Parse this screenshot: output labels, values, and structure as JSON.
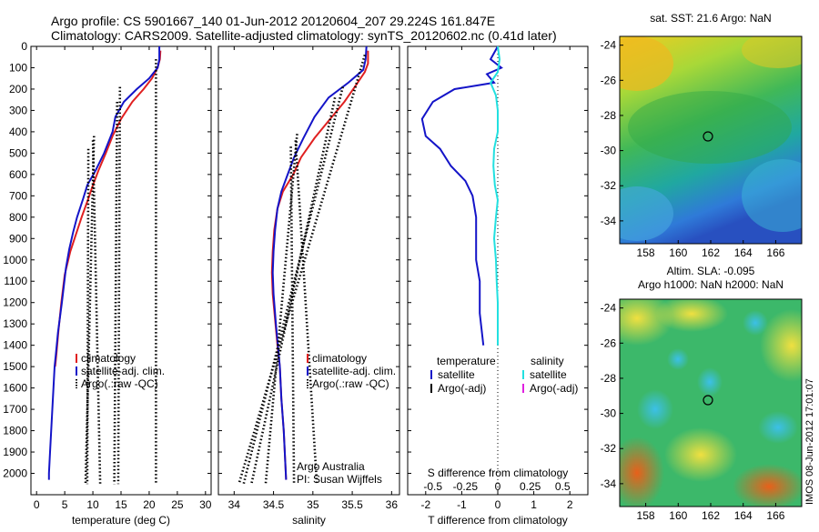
{
  "header": {
    "line1": "Argo profile: CS 5901667_140 01-Jun-2012 20120604_207 29.224S 161.847E",
    "line2": "Climatology: CARS2009. Satellite-adjusted climatology: synTS_20120602.nc (0.41d later)"
  },
  "side_label": "IMOS 08-Jun-2012 17:01:07",
  "colors": {
    "climatology": "#e02020",
    "satellite": "#1414c8",
    "argo": "#000000",
    "sal_sat": "#22e0e0",
    "sal_argo": "#e020e0"
  },
  "chart_data": [
    {
      "id": "temp",
      "type": "line",
      "xlabel": "temperature (deg C)",
      "xlim": [
        -1,
        31
      ],
      "xticks": [
        0,
        5,
        10,
        15,
        20,
        25,
        30
      ],
      "ylim": [
        2100,
        0
      ],
      "yticks": [
        0,
        100,
        200,
        300,
        400,
        500,
        600,
        700,
        800,
        900,
        1000,
        1100,
        1200,
        1300,
        1400,
        1500,
        1600,
        1700,
        1800,
        1900,
        2000
      ],
      "legend": [
        "climatology",
        "satellite-adj. clim.",
        "Argo(.:raw -QC)"
      ],
      "series": [
        {
          "name": "climatology",
          "color_key": "climatology",
          "points": [
            [
              22.0,
              20
            ],
            [
              21.9,
              60
            ],
            [
              21.5,
              100
            ],
            [
              20.5,
              150
            ],
            [
              19.0,
              200
            ],
            [
              17.0,
              260
            ],
            [
              15.0,
              340
            ],
            [
              13.5,
              420
            ],
            [
              12.3,
              500
            ],
            [
              11.0,
              580
            ],
            [
              10.0,
              650
            ],
            [
              9.1,
              720
            ],
            [
              8.0,
              800
            ],
            [
              7.0,
              880
            ],
            [
              6.0,
              960
            ],
            [
              5.0,
              1070
            ],
            [
              4.4,
              1200
            ],
            [
              3.9,
              1330
            ],
            [
              3.5,
              1450
            ],
            [
              3.3,
              1500
            ]
          ]
        },
        {
          "name": "satellite-adj. clim.",
          "color_key": "satellite",
          "points": [
            [
              21.8,
              0
            ],
            [
              21.8,
              60
            ],
            [
              21.5,
              100
            ],
            [
              20.0,
              150
            ],
            [
              17.8,
              200
            ],
            [
              15.5,
              260
            ],
            [
              14.0,
              330
            ],
            [
              13.5,
              400
            ],
            [
              12.0,
              500
            ],
            [
              10.5,
              580
            ],
            [
              9.0,
              650
            ],
            [
              8.2,
              720
            ],
            [
              7.2,
              800
            ],
            [
              6.5,
              870
            ],
            [
              5.8,
              950
            ],
            [
              5.2,
              1040
            ],
            [
              4.5,
              1200
            ],
            [
              3.8,
              1340
            ],
            [
              3.4,
              1450
            ],
            [
              3.2,
              1500
            ],
            [
              2.8,
              1700
            ],
            [
              2.4,
              1900
            ],
            [
              2.2,
              2000
            ],
            [
              2.2,
              2030
            ]
          ]
        },
        {
          "name": "Argo raw",
          "color_key": "argo",
          "dotted": true,
          "points": [
            [
              21.2,
              60
            ],
            [
              21.2,
              2050
            ]
          ]
        },
        {
          "name": "Argo raw",
          "color_key": "argo",
          "dotted": true,
          "points": [
            [
              14.8,
              190
            ],
            [
              14.5,
              2050
            ]
          ]
        },
        {
          "name": "Argo raw",
          "color_key": "argo",
          "dotted": true,
          "points": [
            [
              14.3,
              260
            ],
            [
              13.8,
              2050
            ]
          ]
        },
        {
          "name": "Argo raw",
          "color_key": "argo",
          "dotted": true,
          "points": [
            [
              10.2,
              420
            ],
            [
              8.7,
              2050
            ]
          ]
        },
        {
          "name": "Argo raw",
          "color_key": "argo",
          "dotted": true,
          "points": [
            [
              10.0,
              440
            ],
            [
              11.3,
              2050
            ]
          ]
        },
        {
          "name": "Argo raw",
          "color_key": "argo",
          "dotted": true,
          "points": [
            [
              9.2,
              480
            ],
            [
              9.0,
              2050
            ]
          ]
        }
      ]
    },
    {
      "id": "sal",
      "type": "line",
      "xlabel": "salinity",
      "xlim": [
        33.8,
        36.1
      ],
      "xticks": [
        34,
        34.5,
        35,
        35.5,
        36
      ],
      "xticklabels": [
        "34",
        "34.5",
        "35",
        "35.5",
        "36"
      ],
      "ylim": [
        2100,
        0
      ],
      "legend": [
        "climatology",
        "satellite-adj. clim.",
        "Argo(.:raw -QC)"
      ],
      "annotation": [
        "Argo Australia",
        "PI: Susan Wijffels"
      ],
      "series": [
        {
          "name": "climatology",
          "color_key": "climatology",
          "points": [
            [
              35.7,
              20
            ],
            [
              35.7,
              80
            ],
            [
              35.66,
              120
            ],
            [
              35.55,
              180
            ],
            [
              35.4,
              260
            ],
            [
              35.22,
              340
            ],
            [
              35.02,
              430
            ],
            [
              34.85,
              520
            ],
            [
              34.75,
              600
            ],
            [
              34.62,
              680
            ],
            [
              34.55,
              760
            ],
            [
              34.51,
              860
            ],
            [
              34.49,
              960
            ],
            [
              34.48,
              1060
            ],
            [
              34.49,
              1160
            ],
            [
              34.52,
              1280
            ],
            [
              34.55,
              1400
            ],
            [
              34.58,
              1500
            ],
            [
              34.6,
              1650
            ],
            [
              34.63,
              1800
            ],
            [
              34.65,
              1950
            ],
            [
              34.66,
              2030
            ]
          ]
        },
        {
          "name": "satellite-adj. clim.",
          "color_key": "satellite",
          "points": [
            [
              35.68,
              0
            ],
            [
              35.67,
              60
            ],
            [
              35.64,
              110
            ],
            [
              35.45,
              170
            ],
            [
              35.2,
              240
            ],
            [
              35.02,
              330
            ],
            [
              34.88,
              430
            ],
            [
              34.76,
              520
            ],
            [
              34.68,
              600
            ],
            [
              34.6,
              680
            ],
            [
              34.55,
              760
            ],
            [
              34.52,
              860
            ],
            [
              34.5,
              960
            ],
            [
              34.49,
              1060
            ],
            [
              34.5,
              1160
            ],
            [
              34.53,
              1300
            ],
            [
              34.56,
              1420
            ],
            [
              34.58,
              1500
            ],
            [
              34.6,
              1650
            ],
            [
              34.63,
              1800
            ],
            [
              34.65,
              1950
            ],
            [
              34.66,
              2030
            ]
          ]
        },
        {
          "name": "Argo raw",
          "color_key": "argo",
          "dotted": true,
          "points": [
            [
              35.66,
              40
            ],
            [
              34.06,
              2050
            ]
          ]
        },
        {
          "name": "Argo raw",
          "color_key": "argo",
          "dotted": true,
          "points": [
            [
              35.38,
              190
            ],
            [
              34.12,
              2050
            ]
          ]
        },
        {
          "name": "Argo raw",
          "color_key": "argo",
          "dotted": true,
          "points": [
            [
              35.28,
              240
            ],
            [
              34.22,
              2050
            ]
          ]
        },
        {
          "name": "Argo raw",
          "color_key": "argo",
          "dotted": true,
          "points": [
            [
              34.8,
              410
            ],
            [
              34.4,
              2050
            ]
          ]
        },
        {
          "name": "Argo raw",
          "color_key": "argo",
          "dotted": true,
          "points": [
            [
              34.78,
              440
            ],
            [
              35.05,
              2050
            ]
          ]
        },
        {
          "name": "Argo raw",
          "color_key": "argo",
          "dotted": true,
          "points": [
            [
              34.72,
              470
            ],
            [
              34.76,
              2050
            ]
          ]
        }
      ]
    },
    {
      "id": "diff",
      "type": "line",
      "xlabel": "T difference from climatology",
      "xlabel_top": "S difference from climatology",
      "xlim": [
        -2.5,
        2.5
      ],
      "xticks": [
        -2,
        -1,
        0,
        1,
        2
      ],
      "sticks": [
        -0.5,
        -0.25,
        0,
        0.25,
        0.5
      ],
      "sticklabels": [
        "-0.5",
        "-0.25",
        "0",
        "0.25",
        "0.5"
      ],
      "ylim": [
        2100,
        0
      ],
      "legend_t_title": "temperature",
      "legend_s_title": "salinity",
      "legend_t": [
        "satellite",
        "Argo(-adj)"
      ],
      "legend_s": [
        "satellite",
        "Argo(-adj)"
      ],
      "series": [
        {
          "name": "T satellite",
          "color_key": "satellite",
          "points": [
            [
              0.0,
              0
            ],
            [
              -0.2,
              60
            ],
            [
              0.1,
              100
            ],
            [
              -0.3,
              130
            ],
            [
              -0.1,
              170
            ],
            [
              -1.2,
              200
            ],
            [
              -1.8,
              260
            ],
            [
              -2.1,
              340
            ],
            [
              -2.0,
              420
            ],
            [
              -1.6,
              480
            ],
            [
              -1.3,
              560
            ],
            [
              -0.9,
              630
            ],
            [
              -0.7,
              700
            ],
            [
              -0.6,
              800
            ],
            [
              -0.6,
              900
            ],
            [
              -0.6,
              1000
            ],
            [
              -0.5,
              1100
            ],
            [
              -0.5,
              1250
            ],
            [
              -0.4,
              1400
            ],
            [
              -0.4,
              1400
            ]
          ]
        },
        {
          "name": "S satellite",
          "color_key": "sal_sat",
          "points": [
            [
              0.0,
              0
            ],
            [
              0.05,
              60
            ],
            [
              0.0,
              120
            ],
            [
              -0.2,
              170
            ],
            [
              -0.05,
              230
            ],
            [
              0.0,
              300
            ],
            [
              0.0,
              400
            ],
            [
              -0.1,
              480
            ],
            [
              -0.12,
              560
            ],
            [
              -0.08,
              650
            ],
            [
              0.0,
              720
            ],
            [
              -0.05,
              800
            ],
            [
              -0.1,
              900
            ],
            [
              -0.05,
              1000
            ],
            [
              -0.03,
              1100
            ],
            [
              0.0,
              1200
            ],
            [
              0.0,
              1300
            ],
            [
              0.0,
              1400
            ]
          ]
        }
      ]
    }
  ],
  "maps": {
    "sst": {
      "title": "sat. SST: 21.6  Argo: NaN",
      "xticks": [
        158,
        160,
        162,
        164,
        166
      ],
      "yticks": [
        -24,
        -26,
        -28,
        -30,
        -32,
        -34
      ]
    },
    "sla": {
      "title1": "Altim. SLA: -0.095",
      "title2": "Argo h1000: NaN  h2000: NaN",
      "xticks": [
        158,
        160,
        162,
        164,
        166
      ],
      "yticks": [
        -24,
        -26,
        -28,
        -30,
        -32,
        -34
      ]
    }
  }
}
